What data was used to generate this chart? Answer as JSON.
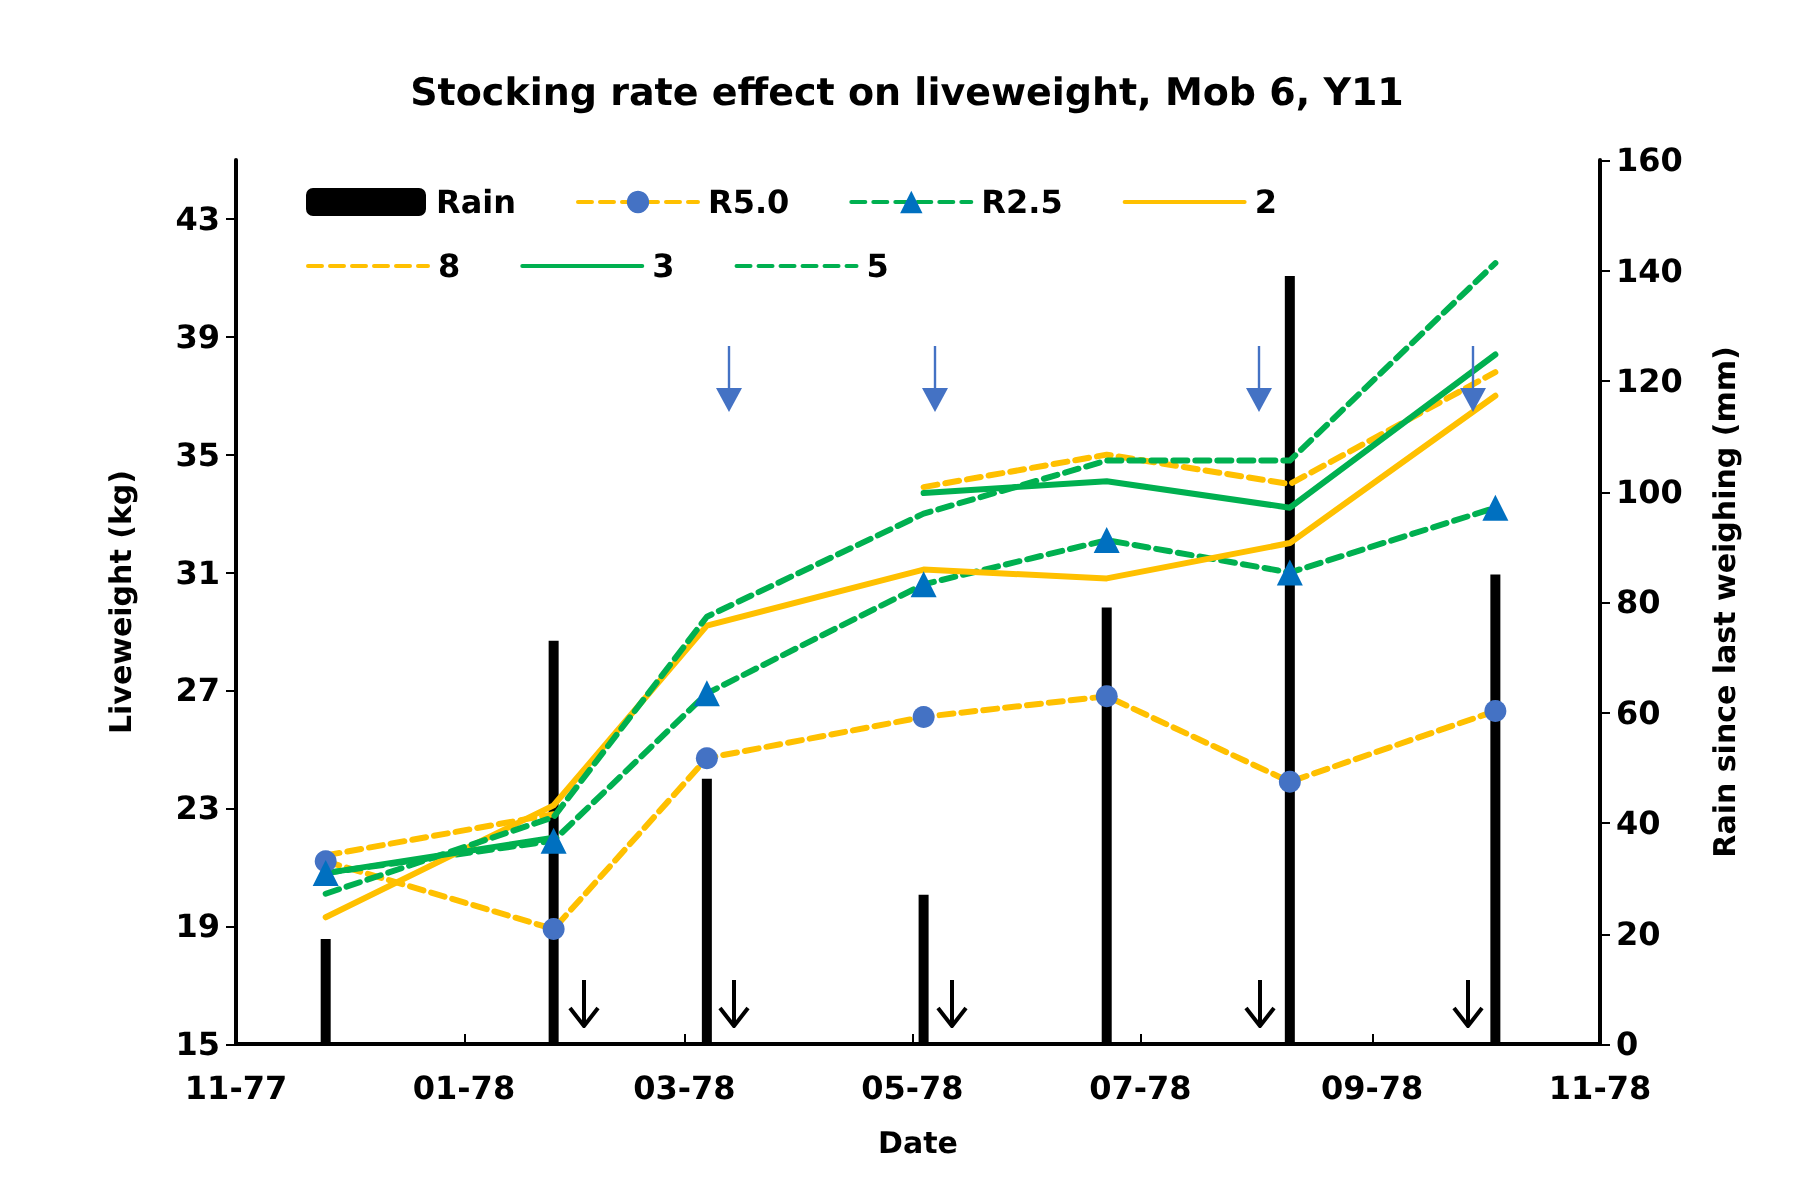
{
  "chart_data": {
    "type": "line",
    "title": "Stocking rate effect on liveweight, Mob 6, Y11",
    "xlabel": "Date",
    "ylabel": "Liveweight (kg)",
    "y2label": "Rain since last weighing (mm)",
    "x": [
      "1977-11-25",
      "1978-01-25",
      "1978-03-07",
      "1978-05-04",
      "1978-06-22",
      "1978-08-10",
      "1978-10-04"
    ],
    "series": [
      {
        "name": "Rain",
        "type": "bar",
        "axis": "y2",
        "color": "#000000",
        "values": [
          19,
          73,
          48,
          27,
          79,
          139,
          85
        ]
      },
      {
        "name": "R5.0",
        "color": "#ffc000",
        "colors": [
          "#4472c4",
          "#4472c4",
          "#4472c4",
          "#4472c4",
          "#4472c4",
          "#4472c4",
          "#4472c4"
        ],
        "marker": "circle",
        "line_style": "dashed",
        "values": [
          21.2,
          18.9,
          24.7,
          26.1,
          26.8,
          23.9,
          26.3
        ]
      },
      {
        "name": "R2.5",
        "color": "#00b050",
        "colors": [
          "#0070c0",
          "#0070c0",
          "#0070c0",
          "#0070c0",
          "#0070c0",
          "#0070c0",
          "#0070c0"
        ],
        "marker": "triangle",
        "line_style": "dashed",
        "values": [
          20.8,
          21.9,
          26.9,
          30.6,
          32.1,
          31.0,
          33.2
        ]
      },
      {
        "name": "2",
        "color": "#ffc000",
        "line_style": "solid",
        "values": [
          19.3,
          23.1,
          29.2,
          31.1,
          30.8,
          32.0,
          37.0
        ]
      },
      {
        "name": "8",
        "color": "#ffc000",
        "line_style": "dashed",
        "values": [
          21.4,
          22.8,
          null,
          33.9,
          35.0,
          34.0,
          37.8
        ]
      },
      {
        "name": "3",
        "color": "#00b050",
        "line_style": "solid",
        "values": [
          20.8,
          22.0,
          null,
          33.7,
          34.1,
          33.2,
          38.4
        ]
      },
      {
        "name": "5",
        "color": "#00b050",
        "line_style": "dashed",
        "values": [
          20.1,
          22.7,
          29.5,
          33.0,
          34.8,
          34.8,
          41.5
        ]
      }
    ],
    "xlim": [
      "1977-11",
      "1978-11"
    ],
    "xticks": [
      {
        "value": "1977-11",
        "label": "11-77"
      },
      {
        "value": "1978-01",
        "label": "01-78"
      },
      {
        "value": "1978-03",
        "label": "03-78"
      },
      {
        "value": "1978-05",
        "label": "05-78"
      },
      {
        "value": "1978-07",
        "label": "07-78"
      },
      {
        "value": "1978-09",
        "label": "09-78"
      },
      {
        "value": "1978-11",
        "label": "11-78"
      }
    ],
    "ylim": [
      15,
      45
    ],
    "yticks": [
      15,
      19,
      23,
      27,
      31,
      35,
      39,
      43
    ],
    "y2lim": [
      0,
      160
    ],
    "y2ticks": [
      0,
      20,
      40,
      60,
      80,
      100,
      120,
      140,
      160
    ],
    "legend": "top",
    "grid": false
  }
}
